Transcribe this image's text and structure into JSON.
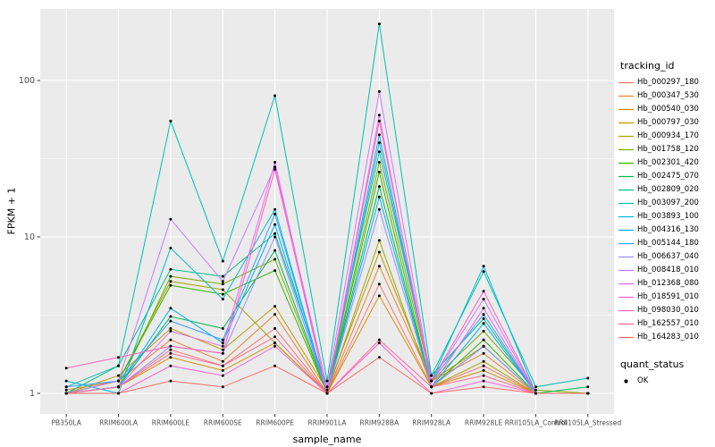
{
  "figure": {
    "panel_bg": "#EBEBEB",
    "grid_color": "#FFFFFF",
    "tick_color": "#333333",
    "tick_label_color": "#4D4D4D",
    "point_color": "#000000"
  },
  "legend": {
    "tracking_title": "tracking_id",
    "quant_title": "quant_status",
    "quant_ok_label": "OK"
  },
  "chart_data": {
    "type": "line",
    "title": "",
    "xlabel": "sample_name",
    "ylabel": "FPKM + 1",
    "y_scale": "log10",
    "y_ticks": [
      1,
      10,
      100
    ],
    "ylim": [
      1,
      286
    ],
    "legend_position": "right",
    "grid": true,
    "marker": {
      "legend_label": "OK",
      "shape": "point",
      "color": "#000000"
    },
    "categories": [
      "PB350LA",
      "RRIM600LA",
      "RRIM600LE",
      "RRIM600SE",
      "RRIM600PE",
      "RRIM901LA",
      "RRIM928BA",
      "RRIM928LA",
      "RRIM928LE",
      "RRII105LA_Control",
      "RRII105LA_Stressed"
    ],
    "series": [
      {
        "name": "Hb_000297_180",
        "color": "#F8766D",
        "values": [
          1.0,
          1.1,
          1.9,
          1.5,
          2.6,
          1.0,
          5.0,
          1.1,
          1.5,
          1.0,
          1.0
        ]
      },
      {
        "name": "Hb_000347_530",
        "color": "#EA8331",
        "values": [
          1.05,
          1.2,
          2.2,
          1.6,
          3.2,
          1.0,
          6.5,
          1.2,
          1.8,
          1.0,
          1.0
        ]
      },
      {
        "name": "Hb_000540_030",
        "color": "#D89000",
        "values": [
          1.0,
          1.1,
          1.7,
          1.4,
          2.1,
          1.0,
          4.2,
          1.1,
          1.4,
          1.0,
          1.0
        ]
      },
      {
        "name": "Hb_000797_030",
        "color": "#C09B00",
        "values": [
          1.0,
          1.3,
          2.6,
          1.9,
          3.6,
          1.05,
          8.0,
          1.2,
          2.0,
          1.0,
          1.0
        ]
      },
      {
        "name": "Hb_000934_170",
        "color": "#A3A500",
        "values": [
          1.0,
          1.2,
          5.2,
          4.6,
          2.1,
          1.0,
          9.5,
          1.1,
          1.6,
          1.0,
          1.0
        ]
      },
      {
        "name": "Hb_001758_120",
        "color": "#7CAE00",
        "values": [
          1.0,
          1.1,
          5.6,
          5.0,
          7.2,
          1.0,
          30.0,
          1.2,
          2.5,
          1.05,
          1.0
        ]
      },
      {
        "name": "Hb_002301_420",
        "color": "#39B600",
        "values": [
          1.0,
          1.2,
          4.9,
          4.3,
          6.1,
          1.0,
          26.0,
          1.1,
          2.2,
          1.0,
          1.0
        ]
      },
      {
        "name": "Hb_002475_070",
        "color": "#00BB4E",
        "values": [
          1.0,
          1.1,
          3.1,
          2.6,
          8.2,
          1.0,
          21.0,
          1.1,
          2.0,
          1.0,
          1.1
        ]
      },
      {
        "name": "Hb_002809_020",
        "color": "#00C087",
        "values": [
          1.0,
          1.5,
          6.2,
          5.6,
          10.5,
          1.1,
          35.0,
          1.3,
          3.0,
          1.0,
          1.0
        ]
      },
      {
        "name": "Hb_003097_200",
        "color": "#00C0AF",
        "values": [
          1.1,
          1.5,
          55.0,
          7.0,
          80.0,
          1.2,
          230.0,
          1.3,
          6.0,
          1.1,
          1.25
        ]
      },
      {
        "name": "Hb_003893_100",
        "color": "#00BCD8",
        "values": [
          1.2,
          1.0,
          8.5,
          4.0,
          15.0,
          1.0,
          45.0,
          1.2,
          6.5,
          1.0,
          1.0
        ]
      },
      {
        "name": "Hb_004316_130",
        "color": "#00B0F6",
        "values": [
          1.0,
          1.1,
          3.5,
          2.1,
          12.0,
          1.0,
          18.0,
          1.1,
          2.8,
          1.0,
          1.0
        ]
      },
      {
        "name": "Hb_005144_180",
        "color": "#35A2FF",
        "values": [
          1.1,
          1.2,
          2.9,
          2.2,
          14.0,
          1.0,
          40.0,
          1.2,
          3.2,
          1.0,
          1.0
        ]
      },
      {
        "name": "Hb_006637_040",
        "color": "#9590FF",
        "values": [
          1.0,
          1.1,
          2.0,
          1.8,
          10.0,
          1.0,
          15.0,
          1.1,
          2.0,
          1.0,
          1.0
        ]
      },
      {
        "name": "Hb_008418_010",
        "color": "#C77CFF",
        "values": [
          1.0,
          1.2,
          13.0,
          5.2,
          28.0,
          1.1,
          85.0,
          1.2,
          4.0,
          1.0,
          1.0
        ]
      },
      {
        "name": "Hb_012368_080",
        "color": "#E76BF3",
        "values": [
          1.0,
          1.1,
          2.5,
          2.0,
          30.0,
          1.0,
          60.0,
          1.1,
          3.5,
          1.0,
          1.0
        ]
      },
      {
        "name": "Hb_018591_010",
        "color": "#FA62DB",
        "values": [
          1.0,
          1.0,
          1.5,
          1.3,
          2.0,
          1.0,
          2.1,
          1.0,
          1.2,
          1.0,
          1.0
        ]
      },
      {
        "name": "Hb_098030_010",
        "color": "#FF62BC",
        "values": [
          1.45,
          1.7,
          2.0,
          1.8,
          27.0,
          1.0,
          55.0,
          1.2,
          4.5,
          1.0,
          1.0
        ]
      },
      {
        "name": "Hb_162557_010",
        "color": "#FF6A98",
        "values": [
          1.0,
          1.1,
          1.8,
          1.5,
          2.3,
          1.0,
          2.2,
          1.1,
          1.3,
          1.0,
          1.0
        ]
      },
      {
        "name": "Hb_164283_010",
        "color": "#FF6C67",
        "values": [
          1.0,
          1.0,
          1.2,
          1.1,
          1.5,
          1.0,
          1.7,
          1.0,
          1.1,
          1.0,
          1.0
        ]
      }
    ]
  }
}
